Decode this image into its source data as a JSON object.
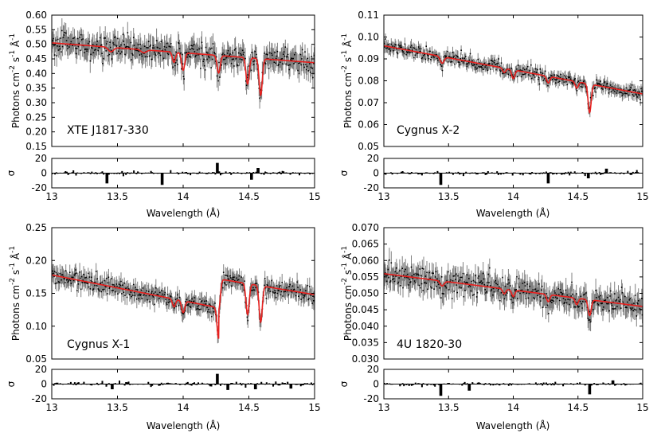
{
  "figure": {
    "colors": {
      "data": "#000000",
      "errorbar": "#808080",
      "model": "#e8201e",
      "axes": "#000000"
    }
  },
  "chart_data": [
    {
      "type": "line",
      "title": "XTE J1817-330",
      "ylabel": "Photons cm^-2 s^-1 Å^-1",
      "xlabel": "Wavelength (Å)",
      "xlim": [
        13,
        15
      ],
      "ylim": [
        0.15,
        0.6
      ],
      "x_ticks": [
        "13",
        "13.5",
        "14",
        "14.5",
        "15"
      ],
      "y_ticks": [
        "0.15",
        "0.20",
        "0.25",
        "0.30",
        "0.35",
        "0.40",
        "0.45",
        "0.50",
        "0.55",
        "0.60"
      ],
      "continuum": [
        [
          13.0,
          0.505
        ],
        [
          15.0,
          0.437
        ]
      ],
      "lines": [
        {
          "center": 13.45,
          "depth": 0.015,
          "width": 0.02
        },
        {
          "center": 13.7,
          "depth": 0.01,
          "width": 0.02
        },
        {
          "center": 13.93,
          "depth": 0.035,
          "width": 0.012
        },
        {
          "center": 14.0,
          "depth": 0.06,
          "width": 0.012
        },
        {
          "center": 14.27,
          "depth": 0.06,
          "width": 0.012
        },
        {
          "center": 14.49,
          "depth": 0.09,
          "width": 0.012
        },
        {
          "center": 14.59,
          "depth": 0.125,
          "width": 0.012
        }
      ],
      "scatter": 0.035,
      "residual": {
        "ylabel": "σ",
        "ylim": [
          -20,
          20
        ],
        "y_ticks": [
          "20",
          "0",
          "-20"
        ],
        "spikes": [
          {
            "x": 13.42,
            "v": -14
          },
          {
            "x": 13.84,
            "v": -16
          },
          {
            "x": 14.26,
            "v": 14
          },
          {
            "x": 14.52,
            "v": -9
          },
          {
            "x": 14.57,
            "v": 7
          }
        ]
      }
    },
    {
      "type": "line",
      "title": "Cygnus X-2",
      "ylabel": "Photons cm^-2 s^-1 Å^-1",
      "xlabel": "Wavelength (Å)",
      "xlim": [
        13,
        15
      ],
      "ylim": [
        0.05,
        0.11
      ],
      "x_ticks": [
        "13",
        "13.5",
        "14",
        "14.5",
        "15"
      ],
      "y_ticks": [
        "0.05",
        "0.06",
        "0.07",
        "0.08",
        "0.09",
        "0.10",
        "0.11"
      ],
      "continuum": [
        [
          13.0,
          0.096
        ],
        [
          15.0,
          0.074
        ]
      ],
      "lines": [
        {
          "center": 13.45,
          "depth": 0.003,
          "width": 0.015
        },
        {
          "center": 13.93,
          "depth": 0.002,
          "width": 0.012
        },
        {
          "center": 14.0,
          "depth": 0.004,
          "width": 0.012
        },
        {
          "center": 14.27,
          "depth": 0.003,
          "width": 0.012
        },
        {
          "center": 14.49,
          "depth": 0.003,
          "width": 0.012
        },
        {
          "center": 14.59,
          "depth": 0.013,
          "width": 0.012
        }
      ],
      "scatter": 0.0025,
      "residual": {
        "ylabel": "σ",
        "ylim": [
          -20,
          20
        ],
        "y_ticks": [
          "20",
          "0",
          "-20"
        ],
        "spikes": [
          {
            "x": 13.44,
            "v": -16
          },
          {
            "x": 14.27,
            "v": -14
          },
          {
            "x": 14.58,
            "v": -7
          },
          {
            "x": 14.72,
            "v": 6
          }
        ]
      }
    },
    {
      "type": "line",
      "title": "Cygnus X-1",
      "ylabel": "Photons cm^-2 s^-1 Å^-1",
      "xlabel": "Wavelength (Å)",
      "xlim": [
        13,
        15
      ],
      "ylim": [
        0.05,
        0.25
      ],
      "x_ticks": [
        "13",
        "13.5",
        "14",
        "14.5",
        "15"
      ],
      "y_ticks": [
        "0.05",
        "0.10",
        "0.15",
        "0.20",
        "0.25"
      ],
      "continuum_pieces": [
        {
          "from": 13.0,
          "to": 14.27,
          "a": [
            13.0,
            0.178
          ],
          "b": [
            14.27,
            0.128
          ]
        },
        {
          "from": 14.27,
          "to": 15.0,
          "a": [
            14.27,
            0.172
          ],
          "b": [
            15.0,
            0.148
          ]
        }
      ],
      "lines": [
        {
          "center": 13.93,
          "depth": 0.012,
          "width": 0.012
        },
        {
          "center": 14.0,
          "depth": 0.018,
          "width": 0.012
        },
        {
          "center": 14.27,
          "depth": 0.047,
          "width": 0.012
        },
        {
          "center": 14.49,
          "depth": 0.047,
          "width": 0.012
        },
        {
          "center": 14.59,
          "depth": 0.055,
          "width": 0.012
        }
      ],
      "scatter": 0.012,
      "residual": {
        "ylabel": "σ",
        "ylim": [
          -20,
          20
        ],
        "y_ticks": [
          "20",
          "0",
          "-20"
        ],
        "spikes": [
          {
            "x": 13.46,
            "v": -7
          },
          {
            "x": 14.26,
            "v": 14
          },
          {
            "x": 14.34,
            "v": -8
          },
          {
            "x": 14.55,
            "v": -7
          },
          {
            "x": 14.82,
            "v": -6
          }
        ]
      }
    },
    {
      "type": "line",
      "title": "4U 1820-30",
      "ylabel": "Photons cm^-2 s^-1 Å^-1",
      "xlabel": "Wavelength (Å)",
      "xlim": [
        13,
        15
      ],
      "ylim": [
        0.03,
        0.07
      ],
      "x_ticks": [
        "13",
        "13.5",
        "14",
        "14.5",
        "15"
      ],
      "y_ticks": [
        "0.030",
        "0.035",
        "0.040",
        "0.045",
        "0.050",
        "0.055",
        "0.060",
        "0.065",
        "0.070"
      ],
      "continuum": [
        [
          13.0,
          0.056
        ],
        [
          15.0,
          0.046
        ]
      ],
      "lines": [
        {
          "center": 13.45,
          "depth": 0.0015,
          "width": 0.015
        },
        {
          "center": 13.93,
          "depth": 0.0015,
          "width": 0.012
        },
        {
          "center": 14.0,
          "depth": 0.002,
          "width": 0.012
        },
        {
          "center": 14.27,
          "depth": 0.0022,
          "width": 0.012
        },
        {
          "center": 14.49,
          "depth": 0.002,
          "width": 0.012
        },
        {
          "center": 14.59,
          "depth": 0.0048,
          "width": 0.012
        }
      ],
      "scatter": 0.0032,
      "residual": {
        "ylabel": "σ",
        "ylim": [
          -20,
          20
        ],
        "y_ticks": [
          "20",
          "0",
          "-20"
        ],
        "spikes": [
          {
            "x": 13.44,
            "v": -16
          },
          {
            "x": 13.66,
            "v": -9
          },
          {
            "x": 14.59,
            "v": -14
          },
          {
            "x": 14.77,
            "v": 5
          }
        ]
      }
    }
  ]
}
